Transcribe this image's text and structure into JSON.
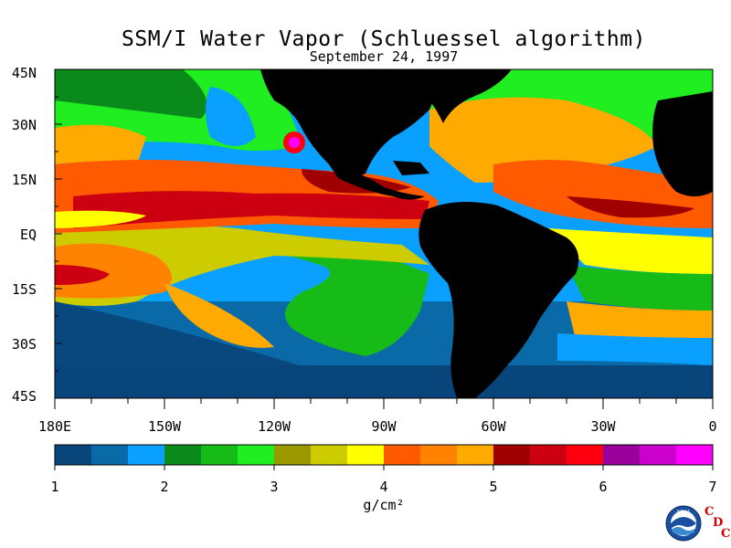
{
  "title": "SSM/I Water Vapor (Schluessel algorithm)",
  "subtitle": "September 24, 1997",
  "latitude_labels": [
    "45N",
    "30N",
    "15N",
    "EQ",
    "15S",
    "30S",
    "45S"
  ],
  "longitude_labels": [
    "180E",
    "150W",
    "120W",
    "90W",
    "60W",
    "30W",
    "0"
  ],
  "colorbar": {
    "tick_labels": [
      "1",
      "2",
      "3",
      "4",
      "5",
      "6",
      "7"
    ],
    "units": "g/cm²",
    "colors": [
      "#08457a",
      "#0a6aa8",
      "#0aa0ff",
      "#0a8a1a",
      "#17bb17",
      "#20ee20",
      "#9a9a00",
      "#cccc00",
      "#ffff00",
      "#ff5a00",
      "#ff8200",
      "#ffaa00",
      "#a00000",
      "#cc0010",
      "#ff0010",
      "#9a009a",
      "#cc00cc",
      "#ff00ff"
    ]
  },
  "logo": {
    "agency": "NOAA",
    "lab": [
      "C",
      "D",
      "C"
    ]
  }
}
